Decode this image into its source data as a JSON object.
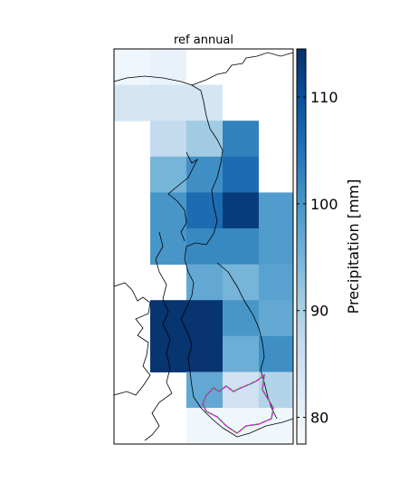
{
  "chart_data": {
    "type": "heatmap",
    "title": "ref annual",
    "colorbar": {
      "label": "Precipitation [mm]",
      "ticks": [
        80,
        90,
        100,
        110
      ],
      "range": [
        77.5,
        114.5
      ],
      "colormap": "Blues",
      "colors": [
        "#f7fbff",
        "#deebf7",
        "#c6dbef",
        "#9ecae1",
        "#6baed6",
        "#4292c6",
        "#2171b5",
        "#08519c",
        "#08306b"
      ]
    },
    "grid": {
      "columns": 5,
      "rows": 11,
      "values": [
        [
          79,
          80,
          null,
          null,
          null
        ],
        [
          84,
          84,
          84,
          null,
          null
        ],
        [
          null,
          87,
          91,
          103,
          null
        ],
        [
          null,
          95,
          101,
          106,
          null
        ],
        [
          null,
          100,
          106,
          113,
          99
        ],
        [
          null,
          100,
          102,
          102,
          99
        ],
        [
          null,
          null,
          97,
          95,
          98
        ],
        [
          null,
          114,
          114,
          100,
          97
        ],
        [
          null,
          114,
          114,
          96,
          101
        ],
        [
          null,
          null,
          97,
          85,
          89
        ],
        [
          null,
          null,
          79,
          79,
          79
        ]
      ]
    },
    "overlays": {
      "boundary_lines": "black",
      "highlighted_border": "magenta/green"
    }
  }
}
